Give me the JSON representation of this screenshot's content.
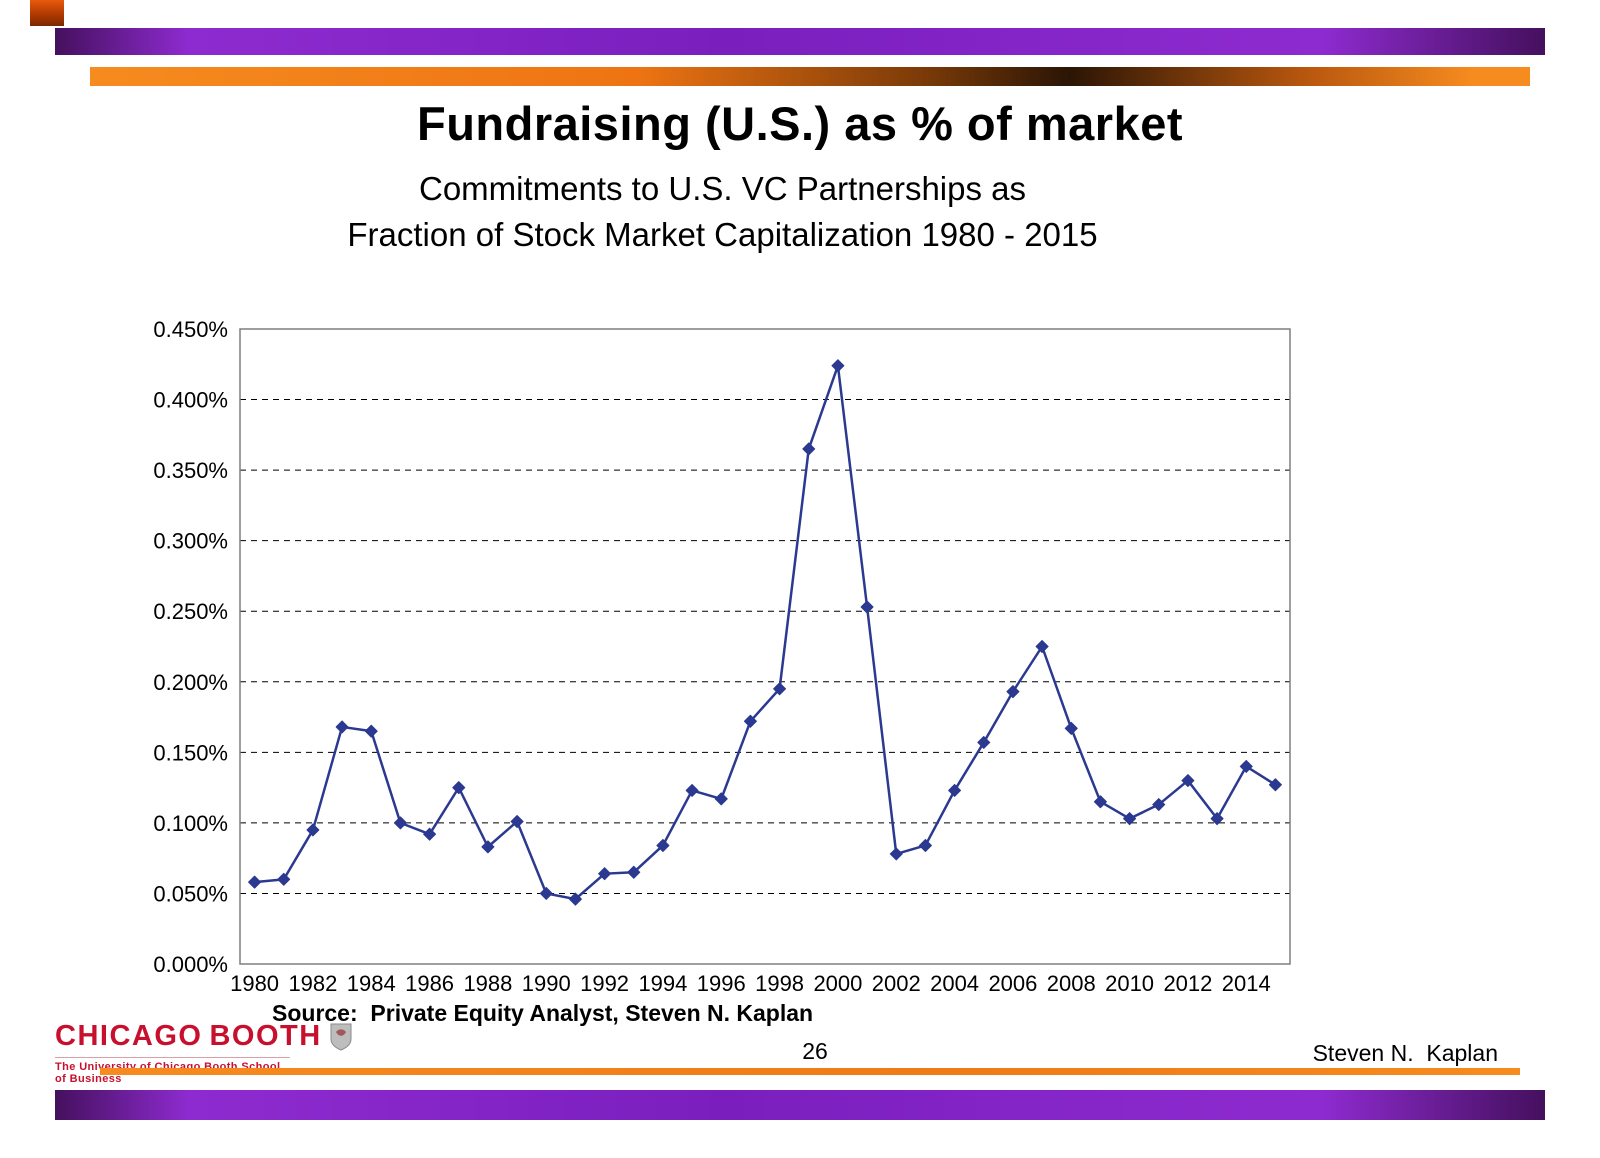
{
  "slide": {
    "title": "Fundraising (U.S.) as % of market",
    "subtitle_line1": "Commitments to U.S. VC Partnerships as",
    "subtitle_line2": "Fraction of Stock Market Capitalization 1980 - 2015",
    "source": "Source:  Private Equity Analyst, Steven N. Kaplan",
    "page_number": "26",
    "author": "Steven N.  Kaplan"
  },
  "logo": {
    "word1": "CHICAGO",
    "word2": "BOOTH",
    "tagline": "The University of Chicago Booth School of Business",
    "color": "#C8102E",
    "crest_icon": "shield-crest"
  },
  "colors": {
    "line": "#2B3990",
    "marker": "#2B3990",
    "top_purple_bar": "#7A1FBE",
    "orange_bar": "#F47B20",
    "logo_red": "#C8102E",
    "plot_border": "#7F7F7F",
    "gridline": "#000000"
  },
  "chart_data": {
    "type": "line",
    "x": [
      1980,
      1981,
      1982,
      1983,
      1984,
      1985,
      1986,
      1987,
      1988,
      1989,
      1990,
      1991,
      1992,
      1993,
      1994,
      1995,
      1996,
      1997,
      1998,
      1999,
      2000,
      2001,
      2002,
      2003,
      2004,
      2005,
      2006,
      2007,
      2008,
      2009,
      2010,
      2011,
      2012,
      2013,
      2014,
      2015
    ],
    "series": [
      {
        "name": "Commitments to U.S. VC Partnerships as fraction of stock market capitalization (%)",
        "values": [
          0.058,
          0.06,
          0.095,
          0.168,
          0.165,
          0.1,
          0.092,
          0.125,
          0.083,
          0.101,
          0.05,
          0.046,
          0.064,
          0.065,
          0.084,
          0.123,
          0.117,
          0.172,
          0.195,
          0.365,
          0.424,
          0.253,
          0.078,
          0.084,
          0.123,
          0.157,
          0.193,
          0.225,
          0.167,
          0.115,
          0.103,
          0.113,
          0.13,
          0.103,
          0.14,
          0.127
        ]
      }
    ],
    "title": "",
    "xlabel": "",
    "ylabel": "",
    "ylim": [
      0,
      0.45
    ],
    "ytick_step": 0.05,
    "ytick_format": "0.000%",
    "x_tick_every": 2,
    "grid": "horizontal-dashed",
    "legend": "none"
  }
}
